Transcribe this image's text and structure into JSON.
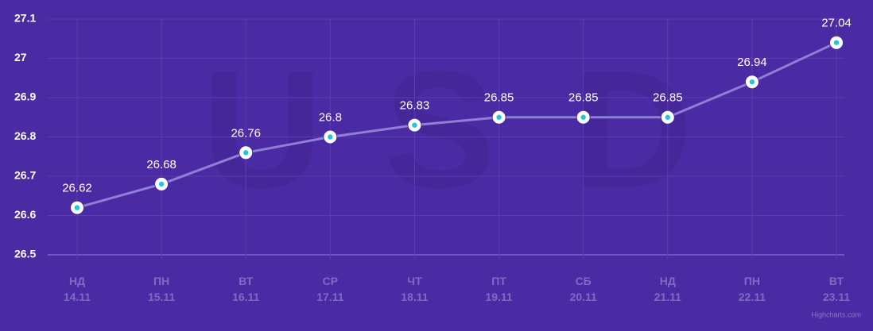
{
  "chart_data": {
    "type": "line",
    "watermark": [
      "U",
      "S",
      "D"
    ],
    "categories": [
      [
        "НД",
        "14.11"
      ],
      [
        "ПН",
        "15.11"
      ],
      [
        "ВТ",
        "16.11"
      ],
      [
        "СР",
        "17.11"
      ],
      [
        "ЧТ",
        "18.11"
      ],
      [
        "ПТ",
        "19.11"
      ],
      [
        "СБ",
        "20.11"
      ],
      [
        "НД",
        "21.11"
      ],
      [
        "ПН",
        "22.11"
      ],
      [
        "ВТ",
        "23.11"
      ]
    ],
    "series": [
      {
        "name": "USD",
        "color": "#8f7fd6",
        "values": [
          26.62,
          26.68,
          26.76,
          26.8,
          26.83,
          26.85,
          26.85,
          26.85,
          26.94,
          27.04
        ]
      }
    ],
    "ylim": [
      26.5,
      27.1
    ],
    "yticks": [
      26.5,
      26.6,
      26.7,
      26.8,
      26.9,
      27,
      27.1
    ],
    "grid": true,
    "credits": "Highcharts.com"
  }
}
